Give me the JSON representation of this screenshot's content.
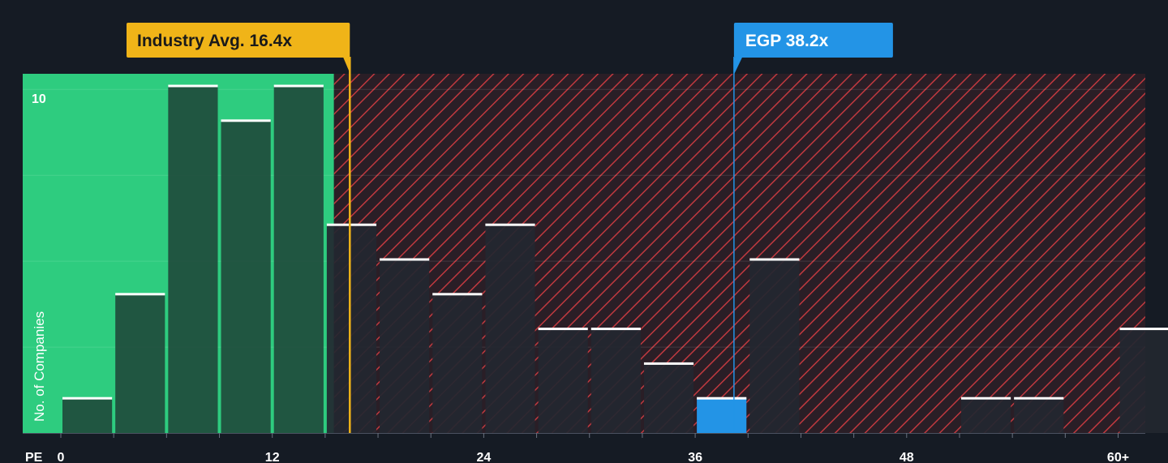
{
  "chart_data": {
    "type": "bar",
    "xlabel": "PE",
    "ylabel": "No. of Companies",
    "x_ticks": [
      "0",
      "12",
      "24",
      "36",
      "48",
      "60+"
    ],
    "x_tick_values": [
      0,
      12,
      24,
      36,
      48,
      60
    ],
    "y_ticks": [
      "10"
    ],
    "y_tick_values": [
      10
    ],
    "xlim": [
      0,
      60
    ],
    "ylim": [
      0,
      10
    ],
    "bin_width": 3,
    "bins": [
      {
        "x0": 0,
        "x1": 3,
        "value": 1
      },
      {
        "x0": 3,
        "x1": 6,
        "value": 4
      },
      {
        "x0": 6,
        "x1": 9,
        "value": 10
      },
      {
        "x0": 9,
        "x1": 12,
        "value": 9
      },
      {
        "x0": 12,
        "x1": 15,
        "value": 10
      },
      {
        "x0": 15,
        "x1": 18,
        "value": 6
      },
      {
        "x0": 18,
        "x1": 21,
        "value": 5
      },
      {
        "x0": 21,
        "x1": 24,
        "value": 4
      },
      {
        "x0": 24,
        "x1": 27,
        "value": 6
      },
      {
        "x0": 27,
        "x1": 30,
        "value": 3
      },
      {
        "x0": 30,
        "x1": 33,
        "value": 3
      },
      {
        "x0": 33,
        "x1": 36,
        "value": 2
      },
      {
        "x0": 36,
        "x1": 39,
        "value": 1,
        "highlight": true
      },
      {
        "x0": 39,
        "x1": 42,
        "value": 5
      },
      {
        "x0": 51,
        "x1": 54,
        "value": 1
      },
      {
        "x0": 54,
        "x1": 57,
        "value": 1
      },
      {
        "x0": 60,
        "x1": 63,
        "value": 3
      }
    ],
    "fair_range_end": 15.5,
    "industry_avg": {
      "label": "Industry Avg. 16.4x",
      "value": 16.4
    },
    "company": {
      "label": "EGP 38.2x",
      "value": 38.2
    },
    "grid": true,
    "colors": {
      "background": "#151b24",
      "fair_zone": "#2ecc7f",
      "bar_in_zone": "#1f4c3c",
      "bar_out_zone": "#232730",
      "hatch_line": "#c0393f",
      "bar_cap": "#ffffff",
      "industry_flag": "#f0b418",
      "company_flag": "#2394e6",
      "highlight_bar": "#2394e6"
    }
  }
}
